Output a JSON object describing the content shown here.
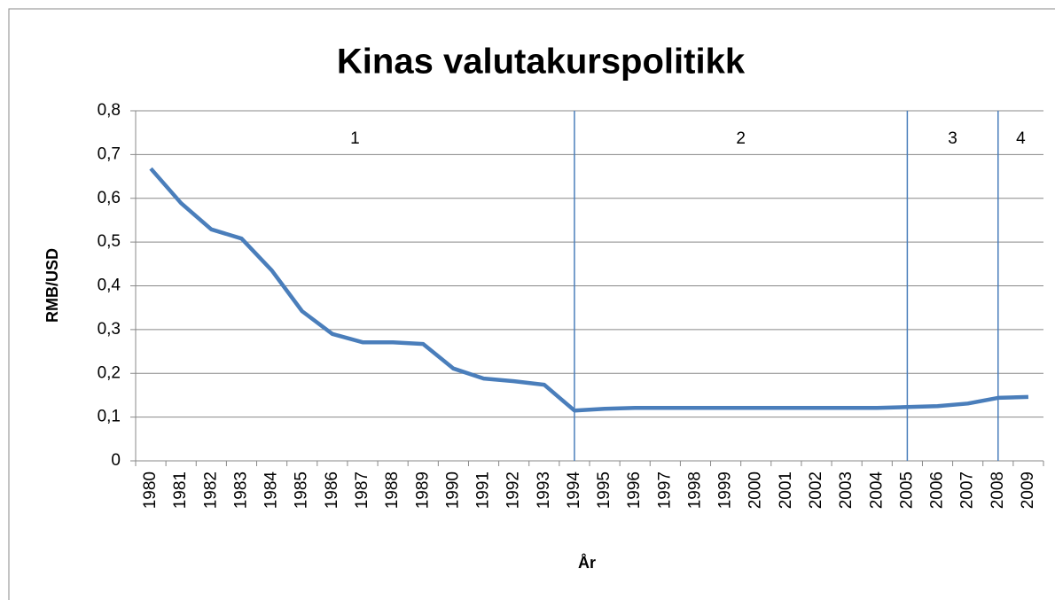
{
  "chart_data": {
    "type": "line",
    "title": "Kinas valutakurspolitikk",
    "x_label": "År",
    "y_label": "RMB/USD",
    "categories": [
      "1980",
      "1981",
      "1982",
      "1983",
      "1984",
      "1985",
      "1986",
      "1987",
      "1988",
      "1989",
      "1990",
      "1991",
      "1992",
      "1993",
      "1994",
      "1995",
      "1996",
      "1997",
      "1998",
      "1999",
      "2000",
      "2001",
      "2002",
      "2003",
      "2004",
      "2005",
      "2006",
      "2007",
      "2008",
      "2009"
    ],
    "series": [
      {
        "name": "RMB/USD",
        "color": "#4a7ebb",
        "values": [
          0.668,
          0.589,
          0.529,
          0.508,
          0.435,
          0.342,
          0.29,
          0.271,
          0.271,
          0.267,
          0.211,
          0.188,
          0.182,
          0.174,
          0.115,
          0.119,
          0.121,
          0.121,
          0.121,
          0.121,
          0.121,
          0.121,
          0.121,
          0.121,
          0.121,
          0.123,
          0.125,
          0.131,
          0.144,
          0.146
        ]
      }
    ],
    "ylim": [
      0,
      0.8
    ],
    "yticks": [
      0,
      {
        "value": 0.1,
        "label": "0,1"
      },
      {
        "value": 0.2,
        "label": "0,2"
      },
      {
        "value": 0.3,
        "label": "0,3"
      },
      {
        "value": 0.4,
        "label": "0,4"
      },
      {
        "value": 0.5,
        "label": "0,5"
      },
      {
        "value": 0.6,
        "label": "0,6"
      },
      {
        "value": 0.7,
        "label": "0,7"
      },
      {
        "value": 0.8,
        "label": "0,8"
      }
    ],
    "grid": true,
    "vertical_lines": [
      "1994",
      "2005",
      "2008"
    ],
    "period_labels": [
      "1",
      "2",
      "3",
      "4"
    ]
  }
}
